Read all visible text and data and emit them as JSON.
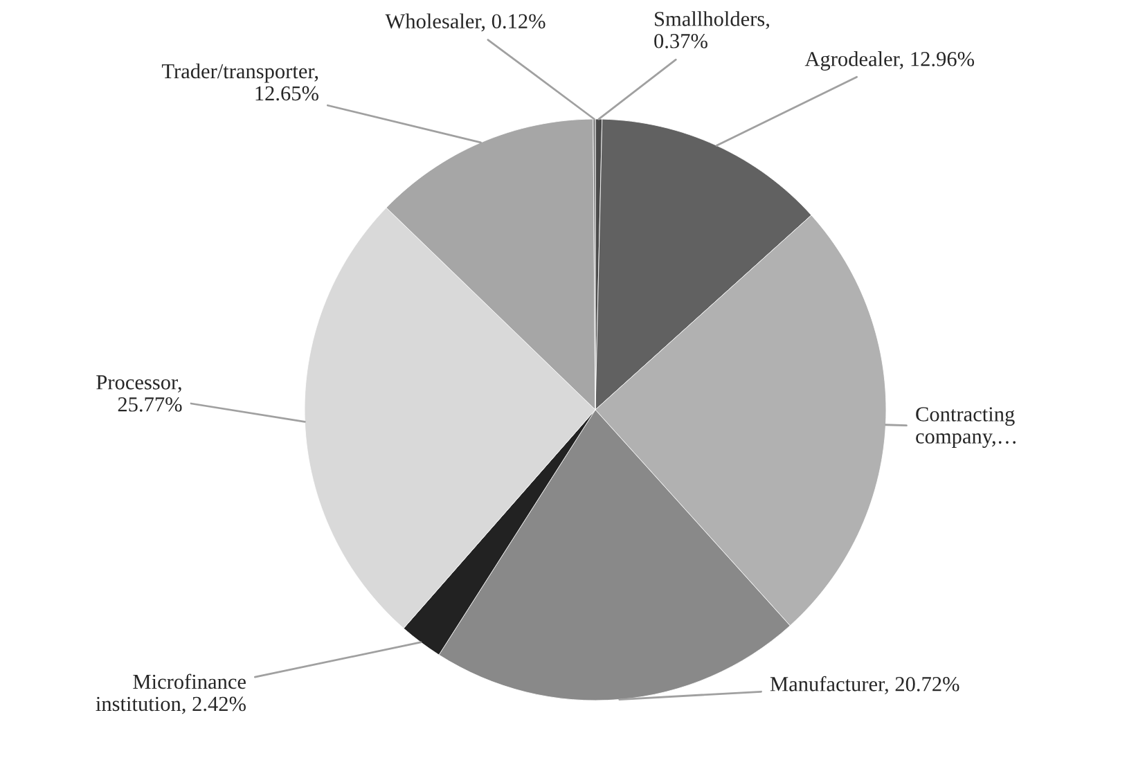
{
  "chart_data": {
    "type": "pie",
    "categories": [
      "Smallholders,\n0.37%",
      "Agrodealer, 12.96%",
      "Contracting\ncompany,…",
      "Manufacturer, 20.72%",
      "Microfinance\ninstitution, 2.42%",
      "Processor,\n25.77%",
      "Trader/transporter,\n12.65%",
      "Wholesaler, 0.12%"
    ],
    "values": [
      0.37,
      12.96,
      24.99,
      20.72,
      2.42,
      25.77,
      12.65,
      0.12
    ],
    "colors": [
      "#4a4a4a",
      "#616161",
      "#b1b1b1",
      "#898989",
      "#222222",
      "#d9d9d9",
      "#a6a6a6",
      "#787878"
    ]
  }
}
